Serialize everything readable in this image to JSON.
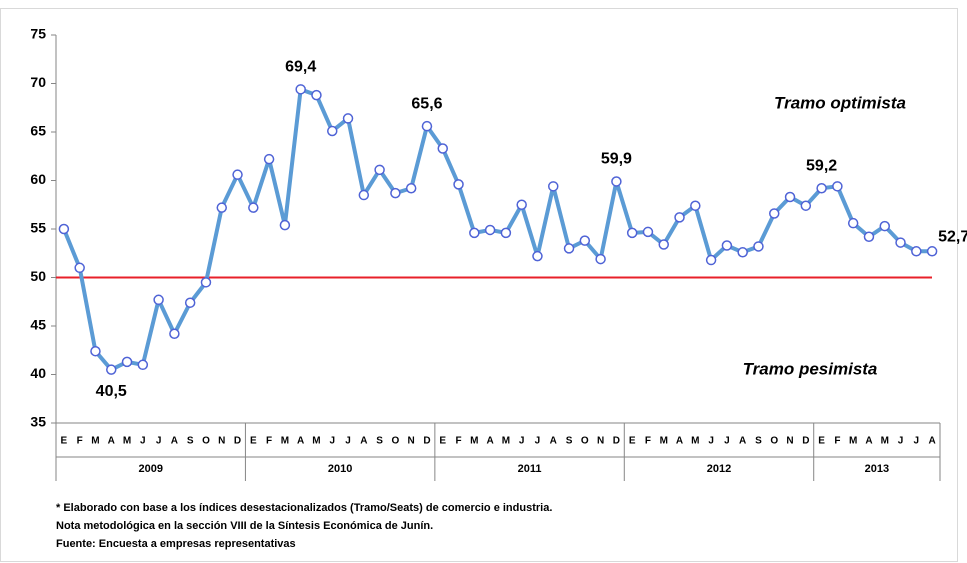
{
  "chart_data": {
    "type": "line",
    "categories": [
      "E",
      "F",
      "M",
      "A",
      "M",
      "J",
      "J",
      "A",
      "S",
      "O",
      "N",
      "D",
      "E",
      "F",
      "M",
      "A",
      "M",
      "J",
      "J",
      "A",
      "S",
      "O",
      "N",
      "D",
      "E",
      "F",
      "M",
      "A",
      "M",
      "J",
      "J",
      "A",
      "S",
      "O",
      "N",
      "D",
      "E",
      "F",
      "M",
      "A",
      "M",
      "J",
      "J",
      "A",
      "S",
      "O",
      "N",
      "D",
      "E",
      "F",
      "M",
      "A",
      "M",
      "J",
      "J",
      "A"
    ],
    "years": [
      "2009",
      "2010",
      "2011",
      "2012",
      "2013"
    ],
    "series": [
      {
        "color": "#5b9bd5",
        "values": [
          55,
          51,
          42.4,
          40.5,
          41.3,
          41,
          47.7,
          44.2,
          47.4,
          49.5,
          57.2,
          60.6,
          57.2,
          62.2,
          55.4,
          69.4,
          68.8,
          65.1,
          66.4,
          58.5,
          61.1,
          58.7,
          59.2,
          65.6,
          63.3,
          59.6,
          54.6,
          54.9,
          54.6,
          57.5,
          52.2,
          59.4,
          53,
          53.8,
          51.9,
          59.9,
          54.6,
          54.7,
          53.4,
          56.2,
          57.4,
          51.8,
          53.3,
          52.6,
          53.2,
          56.6,
          58.3,
          57.4,
          59.2,
          59.4,
          55.6,
          54.2,
          55.3,
          53.6,
          52.7,
          52.7
        ],
        "value_labels": [
          null,
          null,
          null,
          "40,5",
          null,
          null,
          null,
          null,
          null,
          null,
          null,
          null,
          null,
          null,
          null,
          "69,4",
          null,
          null,
          null,
          null,
          null,
          null,
          null,
          "65,6",
          null,
          null,
          null,
          null,
          null,
          null,
          null,
          null,
          null,
          null,
          null,
          "59,9",
          null,
          null,
          null,
          null,
          null,
          null,
          null,
          null,
          null,
          null,
          null,
          null,
          "59,2",
          null,
          null,
          null,
          null,
          null,
          null,
          "52,7"
        ]
      }
    ],
    "reference_line": {
      "value": 50,
      "color": "#e8202a"
    },
    "ylim": [
      35,
      75
    ],
    "yticks": [
      35,
      40,
      45,
      50,
      55,
      60,
      65,
      70,
      75
    ],
    "annotations": [
      {
        "text": "Tramo optimista",
        "color": "#1f3864"
      },
      {
        "text": "Tramo pesimista",
        "color": "#c00000"
      }
    ],
    "footnotes": [
      "* Elaborado con base a los índices desestacionalizados  (Tramo/Seats) de  comercio e industria.",
      "Nota metodológica en la sección VIII de la Síntesis Económica de Junín.",
      "Fuente: Encuesta a empresas representativas"
    ]
  }
}
